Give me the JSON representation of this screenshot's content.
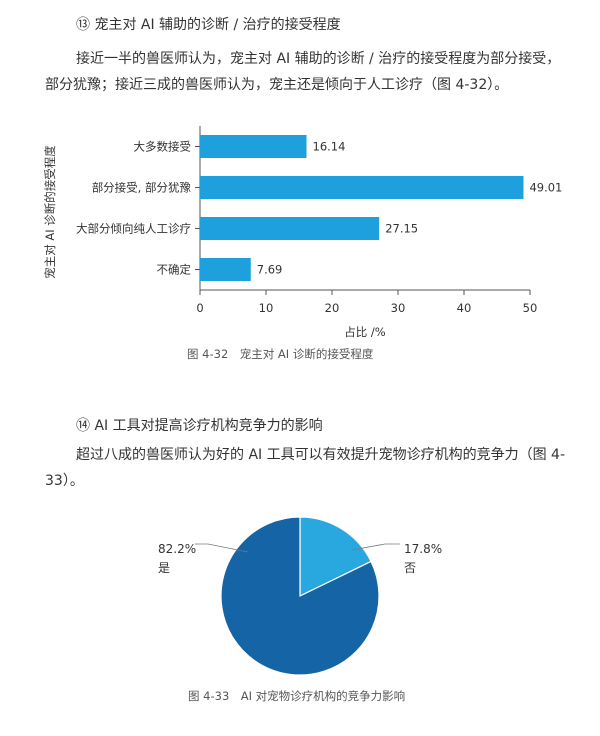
{
  "section13": {
    "heading": "⑬ 宠主对 AI 辅助的诊断 / 治疗的接受程度",
    "paragraph": "接近一半的兽医师认为，宠主对 AI 辅助的诊断 / 治疗的接受程度为部分接受，部分犹豫；接近三成的兽医师认为，宠主还是倾向于人工诊疗（图 4-32）。"
  },
  "section14": {
    "heading": "⑭ AI 工具对提高诊疗机构竞争力的影响",
    "paragraph": "超过八成的兽医师认为好的 AI 工具可以有效提升宠物诊疗机构的竞争力（图 4-33）。"
  },
  "figure1": {
    "caption": "图 4-32　宠主对 AI 诊断的接受程度"
  },
  "figure2": {
    "caption": "图 4-33　AI 对宠物诊疗机构的竞争力影响"
  },
  "chart_data": [
    {
      "type": "bar",
      "orientation": "horizontal",
      "categories": [
        "大多数接受",
        "部分接受, 部分犹豫",
        "大部分倾向纯人工诊疗",
        "不确定"
      ],
      "values": [
        16.14,
        49.01,
        27.15,
        7.69
      ],
      "value_labels": [
        "16.14",
        "49.01",
        "27.15",
        "7.69"
      ],
      "xlabel": "占比 /%",
      "ylabel": "宠主对 AI 诊断的接受程度",
      "xlim": [
        0,
        50
      ],
      "xticks": [
        "0",
        "10",
        "20",
        "30",
        "40",
        "50"
      ],
      "color": "#1ea0dc",
      "grid": false
    },
    {
      "type": "pie",
      "slices": [
        {
          "label": "是",
          "value": 82.2,
          "value_label": "82.2%",
          "color": "#1565a6"
        },
        {
          "label": "否",
          "value": 17.8,
          "value_label": "17.8%",
          "color": "#29a8e0"
        }
      ]
    }
  ]
}
